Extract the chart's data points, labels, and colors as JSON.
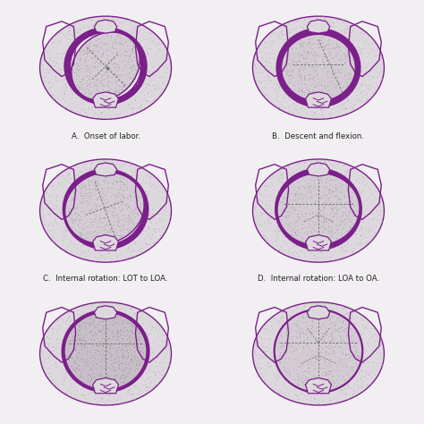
{
  "background_color": "#f2eff2",
  "labels": [
    "A.  Onset of labor.",
    "B.  Descent and flexion.",
    "C.  Internal rotation: LOT to LOA.",
    "D.  Internal rotation: LOA to OA."
  ],
  "purple": "#7B1F8A",
  "light_purple": "#9B4FAA",
  "gray_purple": "#c8bec8",
  "pelvis_fill": "#ddd8dd",
  "head_fill": "#d4ccd4",
  "outline_color": "#7B1F8A",
  "font_size": 7.0
}
